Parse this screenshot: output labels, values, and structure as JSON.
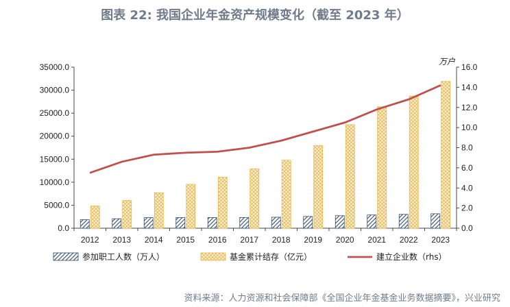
{
  "title": "图表 22: 我国企业年金资产规模变化（截至 2023 年）",
  "source": "资料来源：人力资源和社会保障部《全国企业年金基金业务数据摘要》，兴业研究",
  "chart_data": {
    "type": "bar",
    "categories": [
      "2012",
      "2013",
      "2014",
      "2015",
      "2016",
      "2017",
      "2018",
      "2019",
      "2020",
      "2021",
      "2022",
      "2023"
    ],
    "series": [
      {
        "name": "参加职工人数（万人）",
        "type": "bar",
        "axis": "left",
        "color": "#2f4a6b",
        "pattern": "diagonal-hatch",
        "values": [
          1847,
          2056,
          2293,
          2316,
          2325,
          2331,
          2388,
          2548,
          2718,
          2875,
          3010,
          3144
        ]
      },
      {
        "name": "基金累计结存（亿元）",
        "type": "bar",
        "axis": "left",
        "color": "#e8b64a",
        "pattern": "crosshatch",
        "values": [
          4821,
          6035,
          7689,
          9526,
          11075,
          12880,
          14770,
          17985,
          22497,
          26406,
          28718,
          31906
        ]
      },
      {
        "name": "建立企业数（rhs）",
        "type": "line",
        "axis": "right",
        "color": "#c0504d",
        "values": [
          5.5,
          6.6,
          7.3,
          7.5,
          7.6,
          8.0,
          8.7,
          9.6,
          10.5,
          11.8,
          12.8,
          14.2
        ]
      }
    ],
    "yleft": {
      "lim": [
        0,
        35000
      ],
      "ticks": [
        "0.0",
        "5000.0",
        "10000.0",
        "15000.0",
        "20000.0",
        "25000.0",
        "30000.0",
        "35000.0"
      ]
    },
    "yright": {
      "lim": [
        0,
        16
      ],
      "ticks": [
        "0.0",
        "2.0",
        "4.0",
        "6.0",
        "8.0",
        "10.0",
        "12.0",
        "14.0",
        "16.0"
      ],
      "unit": "万户"
    },
    "grid": false,
    "legend": "bottom"
  }
}
